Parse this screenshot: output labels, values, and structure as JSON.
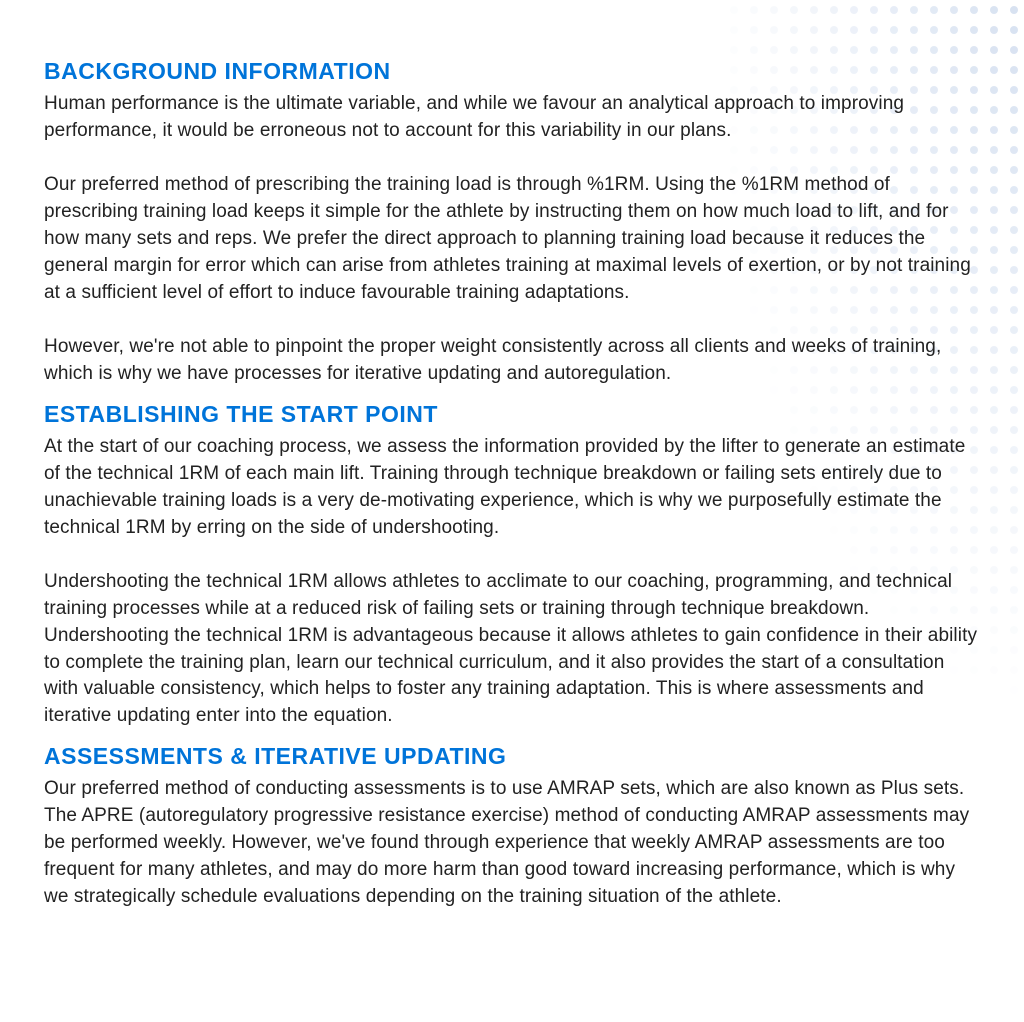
{
  "colors": {
    "heading": "#0074d9",
    "body_text": "#222222",
    "background": "#ffffff",
    "dot_base": "#c9d7ec"
  },
  "typography": {
    "heading_fontsize": 23,
    "heading_weight": 900,
    "body_fontsize": 19,
    "body_lineheight": 1.42
  },
  "dot_pattern": {
    "spacing": 20,
    "radius": 4,
    "cols": 30,
    "rows": 45,
    "color": "#c9d7ec"
  },
  "sections": [
    {
      "heading": "BACKGROUND INFORMATION",
      "paragraphs": [
        "Human performance is the ultimate variable, and while we favour an analytical approach to improving performance, it would be erroneous not to account for this variability in our plans.",
        "Our preferred method of prescribing the training load is through %1RM. Using the %1RM method of prescribing training load keeps it simple for the athlete by instructing them on how much load to lift, and for how many sets and reps. We prefer the direct approach to planning training load because it reduces the general margin for error which can arise from athletes training at maximal levels of exertion, or by not training at a sufficient level of effort to induce favourable training adaptations.",
        "However, we're not able to pinpoint the proper weight consistently across all clients and weeks of training, which is why we have processes for iterative updating and autoregulation."
      ]
    },
    {
      "heading": "ESTABLISHING THE START POINT",
      "paragraphs": [
        "At the start of our coaching process, we assess the information provided by the lifter to generate an estimate of the technical 1RM of each main lift. Training through technique breakdown or failing sets entirely due to unachievable training loads is a very de-motivating experience, which is why we purposefully estimate the technical 1RM by erring on the side of undershooting.",
        "Undershooting the technical 1RM allows athletes to acclimate to our coaching, programming, and technical training processes while at a reduced risk of failing sets or training through technique breakdown. Undershooting the technical 1RM is advantageous because it allows athletes to gain confidence in their ability to complete the training plan, learn our technical curriculum, and it also provides the start of a consultation with valuable consistency, which helps to foster any training adaptation. This is where assessments and iterative updating enter into the equation."
      ]
    },
    {
      "heading": "ASSESSMENTS & ITERATIVE UPDATING",
      "paragraphs": [
        "Our preferred method of conducting assessments is to use AMRAP sets, which are also known as Plus sets. The APRE (autoregulatory progressive resistance exercise) method of conducting AMRAP assessments may be performed weekly. However, we've found through experience that weekly AMRAP assessments are too frequent for many athletes, and may do more harm than good toward increasing performance, which is why we strategically schedule evaluations depending on the training situation of the athlete."
      ]
    }
  ]
}
